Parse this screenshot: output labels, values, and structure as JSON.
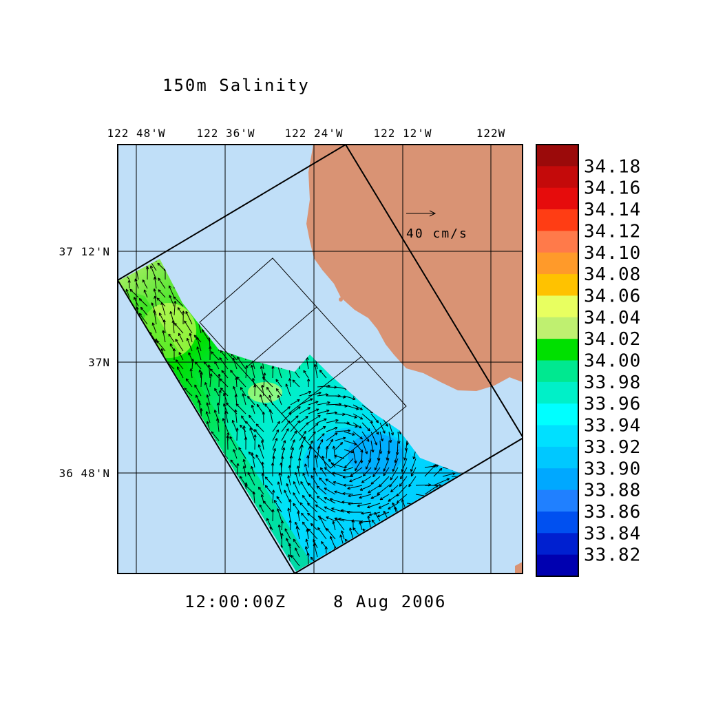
{
  "title": "150m Salinity",
  "timestamp": {
    "time": "12:00:00Z",
    "date": "8 Aug 2006"
  },
  "lon_labels": [
    "122 48'W",
    "122 36'W",
    "122 24'W",
    "122 12'W",
    "122W"
  ],
  "lat_labels": [
    "37 12'N",
    "37N",
    "36 48'N"
  ],
  "reference_vector": {
    "label": "40 cm/s"
  },
  "colorbar": {
    "labels": [
      "34.18",
      "34.16",
      "34.14",
      "34.12",
      "34.10",
      "34.08",
      "34.06",
      "34.04",
      "34.02",
      "34.00",
      "33.98",
      "33.96",
      "33.94",
      "33.92",
      "33.90",
      "33.88",
      "33.86",
      "33.84",
      "33.82"
    ],
    "colors": [
      "#9b0a0a",
      "#c40a0a",
      "#e60c0c",
      "#ff3d14",
      "#ff7a4a",
      "#ff9a2a",
      "#ffc200",
      "#e8ff60",
      "#bff070",
      "#00e000",
      "#00e890",
      "#00f0c8",
      "#00ffff",
      "#00e0ff",
      "#00c8ff",
      "#00a8ff",
      "#2080ff",
      "#0050f0",
      "#0020d0",
      "#0000b0"
    ]
  },
  "colors": {
    "ocean": "#c0dff8",
    "land": "#d99374",
    "frame": "#000000"
  }
}
